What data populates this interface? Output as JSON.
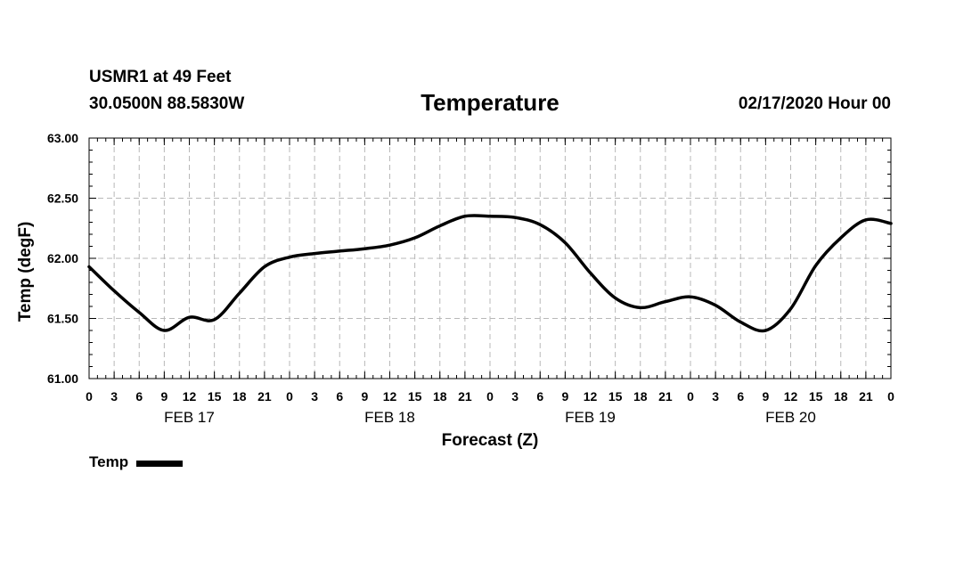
{
  "header": {
    "station": "USMR1 at 49 Feet",
    "coords": "30.0500N 88.5830W",
    "title": "Temperature",
    "datetime": "02/17/2020 Hour 00"
  },
  "chart_data": {
    "type": "line",
    "title": "Temperature",
    "xlabel": "Forecast (Z)",
    "ylabel": "Temp (degF)",
    "ylim": [
      61.0,
      63.0
    ],
    "yticks": [
      "61.00",
      "61.50",
      "62.00",
      "62.50",
      "63.00"
    ],
    "xlim": [
      0,
      96
    ],
    "xtick_hours": [
      0,
      3,
      6,
      9,
      12,
      15,
      18,
      21,
      24,
      27,
      30,
      33,
      36,
      39,
      42,
      45,
      48,
      51,
      54,
      57,
      60,
      63,
      66,
      69,
      72,
      75,
      78,
      81,
      84,
      87,
      90,
      93,
      96
    ],
    "xtick_labels": [
      "0",
      "3",
      "6",
      "9",
      "12",
      "15",
      "18",
      "21",
      "0",
      "3",
      "6",
      "9",
      "12",
      "15",
      "18",
      "21",
      "0",
      "3",
      "6",
      "9",
      "12",
      "15",
      "18",
      "21",
      "0",
      "3",
      "6",
      "9",
      "12",
      "15",
      "18",
      "21",
      "0"
    ],
    "day_labels": [
      {
        "hour": 12,
        "label": "FEB 17"
      },
      {
        "hour": 36,
        "label": "FEB 18"
      },
      {
        "hour": 60,
        "label": "FEB 19"
      },
      {
        "hour": 84,
        "label": "FEB 20"
      }
    ],
    "grid": true,
    "series": [
      {
        "name": "Temp",
        "color": "#000000",
        "x": [
          0,
          3,
          6,
          9,
          12,
          15,
          18,
          21,
          24,
          27,
          30,
          33,
          36,
          39,
          42,
          45,
          48,
          51,
          54,
          57,
          60,
          63,
          66,
          69,
          72,
          75,
          78,
          81,
          84,
          87,
          90,
          93,
          96
        ],
        "values": [
          61.93,
          61.73,
          61.55,
          61.4,
          61.51,
          61.49,
          61.71,
          61.93,
          62.01,
          62.04,
          62.06,
          62.08,
          62.11,
          62.17,
          62.27,
          62.35,
          62.35,
          62.34,
          62.28,
          62.13,
          61.88,
          61.67,
          61.59,
          61.64,
          61.68,
          61.61,
          61.47,
          61.4,
          61.58,
          61.94,
          62.17,
          62.32,
          62.29
        ]
      }
    ],
    "legend": {
      "label": "Temp",
      "position": "bottom-left"
    }
  }
}
